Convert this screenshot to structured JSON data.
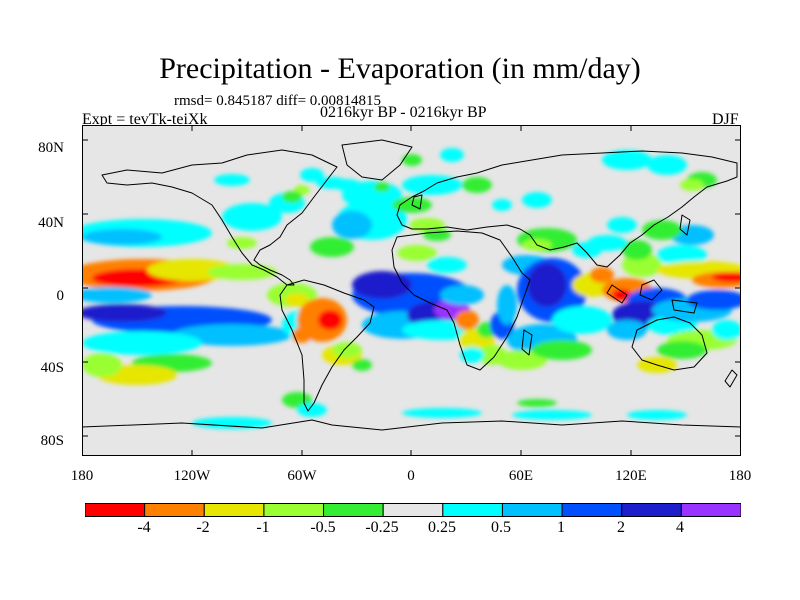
{
  "title": "Precipitation - Evaporation (in mm/day)",
  "stats": "rmsd= 0.845187 diff= 0.00814815",
  "experiment": "Expt = tevTk-teiXk",
  "period": "0216kyr BP - 0216kyr BP",
  "season": "DJF",
  "lat_labels": [
    "80N",
    "40N",
    "0",
    "40S",
    "80S"
  ],
  "lon_labels": [
    "180",
    "120W",
    "60W",
    "0",
    "60E",
    "120E",
    "180"
  ],
  "colorbar": {
    "colors": [
      "#ff0000",
      "#ff8000",
      "#e6e600",
      "#99ff33",
      "#33ee33",
      "#e6e6e6",
      "#00ffff",
      "#00c0ff",
      "#0050ff",
      "#1e1ecc",
      "#9933ff"
    ],
    "labels": [
      "-4",
      "-2",
      "-1",
      "-0.5",
      "-0.25",
      "0.25",
      "0.5",
      "1",
      "2",
      "4"
    ]
  },
  "map": {
    "background_color": "#e6e6e6",
    "coastline_color": "#000000"
  }
}
